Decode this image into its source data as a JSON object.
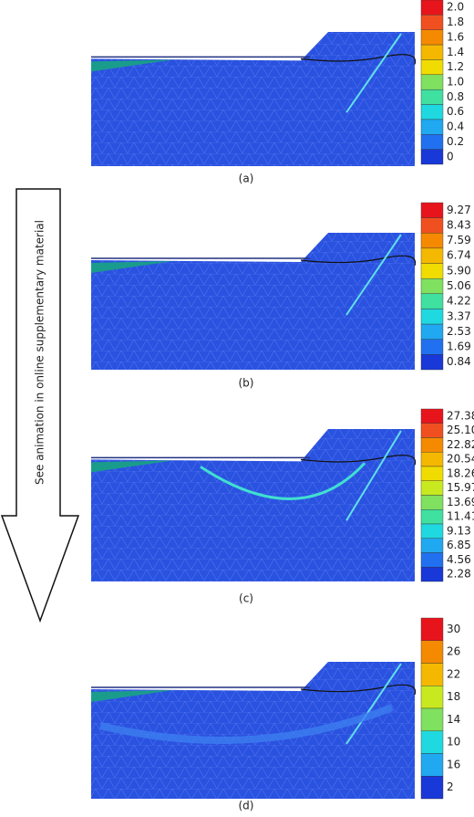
{
  "arrow_text": "See animation in online supplementary material",
  "panels": [
    {
      "label": "(a)",
      "colorbar": [
        "2.0",
        "1.8",
        "1.6",
        "1.4",
        "1.2",
        "1.0",
        "0.8",
        "0.6",
        "0.4",
        "0.2",
        "0"
      ]
    },
    {
      "label": "(b)",
      "colorbar": [
        "9.27",
        "8.43",
        "7.59",
        "6.74",
        "5.90",
        "5.06",
        "4.22",
        "3.37",
        "2.53",
        "1.69",
        "0.84"
      ]
    },
    {
      "label": "(c)",
      "colorbar": [
        "27.38",
        "25.10",
        "22.82",
        "20.54",
        "18.26",
        "15.97",
        "13.69",
        "11.41",
        "9.13",
        "6.85",
        "4.56",
        "2.28"
      ]
    },
    {
      "label": "(d)",
      "colorbar": [
        "30",
        "26",
        "22",
        "18",
        "14",
        "10",
        "16",
        "2"
      ]
    }
  ]
}
